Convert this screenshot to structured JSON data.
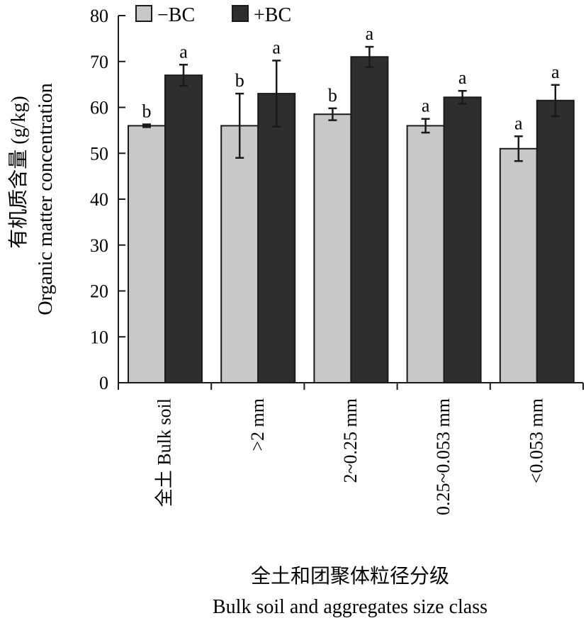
{
  "chart_data": {
    "type": "bar",
    "ylabel_line1": "有机质含量 (g/kg)",
    "ylabel_line2": "Organic matter concentration",
    "xlabel_line1": "全土和团聚体粒径分级",
    "xlabel_line2": "Bulk soil and aggregates size class",
    "ylim": [
      0,
      80
    ],
    "yticks": [
      0,
      10,
      20,
      30,
      40,
      50,
      60,
      70,
      80
    ],
    "categories": [
      "全土 Bulk soil",
      ">2 mm",
      "2~0.25 mm",
      "0.25~0.053 mm",
      "<0.053 mm"
    ],
    "legend_position": "top-left",
    "series": [
      {
        "name": "−BC",
        "color": "#c8c8c8",
        "values": [
          56,
          56,
          58.5,
          56,
          51
        ],
        "errors": [
          0.3,
          7,
          1.3,
          1.5,
          2.7
        ],
        "significance": [
          "b",
          "b",
          "b",
          "a",
          "a"
        ]
      },
      {
        "name": "+BC",
        "color": "#2e2e2e",
        "values": [
          67,
          63,
          71,
          62.2,
          61.5
        ],
        "errors": [
          2.3,
          7.2,
          2.2,
          1.4,
          3.4
        ],
        "significance": [
          "a",
          "a",
          "a",
          "a",
          "a"
        ]
      }
    ]
  }
}
